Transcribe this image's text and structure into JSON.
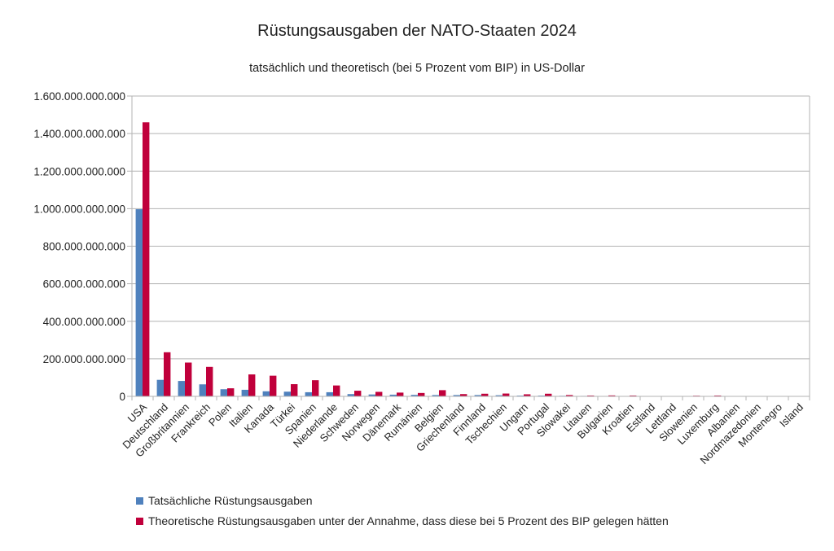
{
  "chart_data": {
    "type": "bar",
    "title": "Rüstungsausgaben der NATO-Staaten 2024",
    "subtitle": "tatsächlich und theoretisch (bei 5 Prozent vom BIP) in US-Dollar",
    "xlabel": "",
    "ylabel": "",
    "ylim": [
      0,
      1600000000000
    ],
    "y_ticks": [
      0,
      200000000000,
      400000000000,
      600000000000,
      800000000000,
      1000000000000,
      1200000000000,
      1400000000000,
      1600000000000
    ],
    "y_tick_labels": [
      "0",
      "200.000.000.000",
      "400.000.000.000",
      "600.000.000.000",
      "800.000.000.000",
      "1.000.000.000.000",
      "1.200.000.000.000",
      "1.400.000.000.000",
      "1.600.000.000.000"
    ],
    "grid": true,
    "legend_position": "bottom",
    "categories": [
      "USA",
      "Deutschland",
      "Großbritannien",
      "Frankreich",
      "Polen",
      "Italien",
      "Kanada",
      "Türkei",
      "Spanien",
      "Niederlande",
      "Schweden",
      "Norwegen",
      "Dänemark",
      "Rumänien",
      "Belgien",
      "Griechenland",
      "Finnland",
      "Tschechien",
      "Ungarn",
      "Portugal",
      "Slowakei",
      "Litauen",
      "Bulgarien",
      "Kroatien",
      "Estland",
      "Lettland",
      "Slowenien",
      "Luxemburg",
      "Albanien",
      "Nordmazedonien",
      "Montenegro",
      "Island"
    ],
    "series": [
      {
        "name": "Tatsächliche Rüstungsausgaben",
        "color": "#4f81bd",
        "values": [
          997000000000,
          88000000000,
          82000000000,
          64000000000,
          38000000000,
          35000000000,
          27000000000,
          25000000000,
          22000000000,
          22000000000,
          12000000000,
          10000000000,
          9000000000,
          8000000000,
          7000000000,
          7000000000,
          7000000000,
          6000000000,
          4000000000,
          4000000000,
          3000000000,
          2500000000,
          2200000000,
          1800000000,
          1400000000,
          1200000000,
          1000000000,
          800000000,
          400000000,
          300000000,
          200000000,
          0
        ]
      },
      {
        "name": "Theoretische Rüstungsausgaben unter der Annahme, dass diese bei 5 Prozent des BIP gelegen hätten",
        "color": "#c0003b",
        "values": [
          1460000000000,
          235000000000,
          180000000000,
          157000000000,
          43000000000,
          117000000000,
          110000000000,
          65000000000,
          86000000000,
          58000000000,
          30000000000,
          24000000000,
          20000000000,
          18000000000,
          33000000000,
          12000000000,
          14000000000,
          15000000000,
          11000000000,
          14000000000,
          7000000000,
          4500000000,
          5000000000,
          4500000000,
          2000000000,
          2000000000,
          3500000000,
          4500000000,
          1100000000,
          800000000,
          400000000,
          1500000000
        ]
      }
    ]
  }
}
